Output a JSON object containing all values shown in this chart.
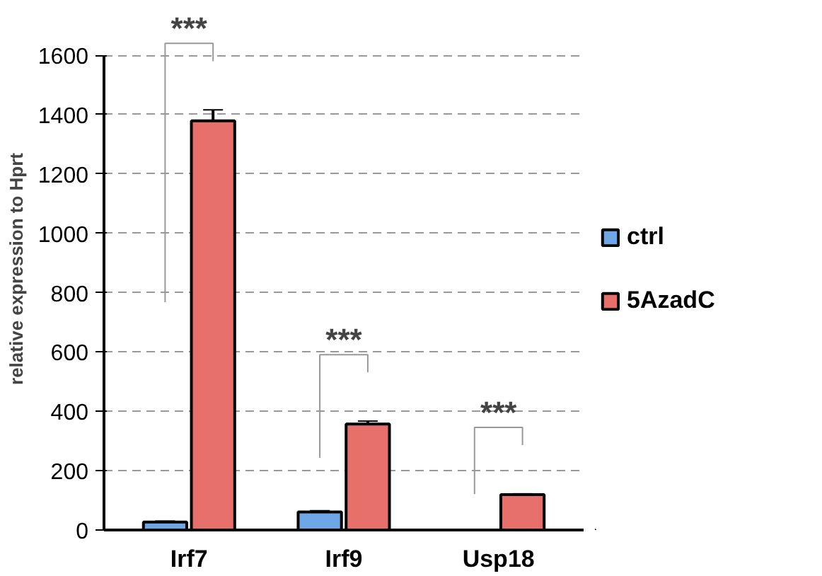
{
  "chart_data": {
    "type": "bar",
    "ylabel": "relative expression to Hprt",
    "categories": [
      "Irf7",
      "Irf9",
      "Usp18"
    ],
    "series": [
      {
        "name": "ctrl",
        "color": "#6fa6e6",
        "values": [
          27,
          61,
          null
        ],
        "errors": [
          3,
          4,
          null
        ]
      },
      {
        "name": "5AzadC",
        "color": "#e8706a",
        "values": [
          1379,
          357,
          119
        ],
        "errors": [
          37,
          10,
          3
        ]
      }
    ],
    "ylim": [
      0,
      1600
    ],
    "yticks": [
      0,
      200,
      400,
      600,
      800,
      1000,
      1200,
      1400,
      1600
    ],
    "grid": "y",
    "legend": "right",
    "annotations": [
      "***",
      "***",
      "***"
    ]
  }
}
